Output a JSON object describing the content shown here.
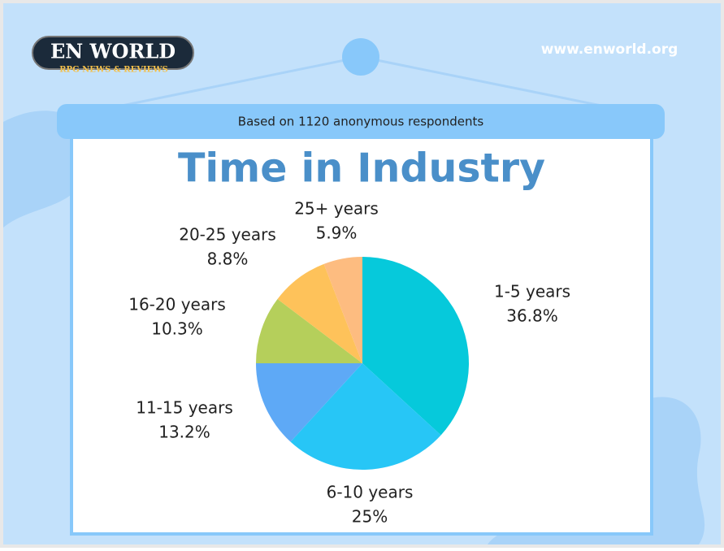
{
  "logo": {
    "name": "EN WORLD",
    "tagline": "RPG NEWS & REVIEWS"
  },
  "site_url": "www.enworld.org",
  "chart_data": {
    "type": "pie",
    "subtitle": "Based on 1120 anonymous respondents",
    "title": "Time in Industry",
    "categories": [
      "1-5 years",
      "6-10 years",
      "11-15 years",
      "16-20 years",
      "20-25 years",
      "25+ years"
    ],
    "values": [
      36.8,
      25,
      13.2,
      10.3,
      8.8,
      5.9
    ],
    "value_labels": [
      "36.8%",
      "25%",
      "13.2%",
      "10.3%",
      "8.8%",
      "5.9%"
    ],
    "colors": [
      "#06c9db",
      "#27c6f6",
      "#5ea9f6",
      "#b5cf5b",
      "#fec25a",
      "#fdbc80"
    ]
  }
}
